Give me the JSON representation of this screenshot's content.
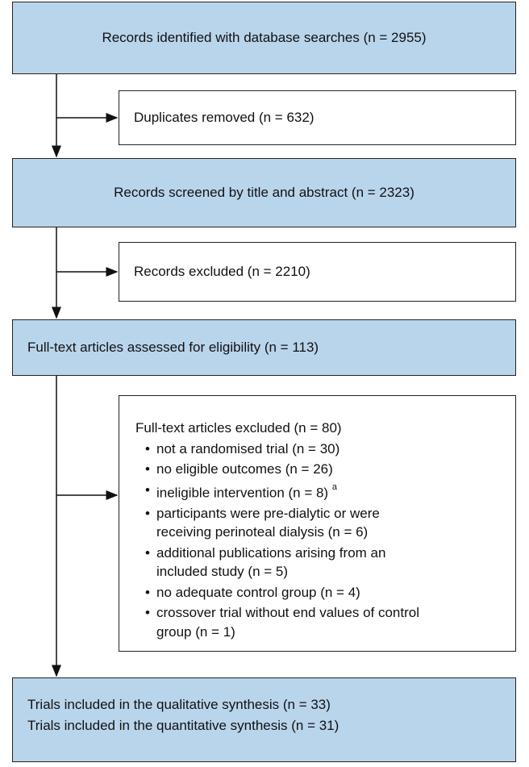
{
  "boxes": [
    {
      "text": "Records identified with database searches (n = 2955)"
    },
    {
      "text": "Duplicates removed (n = 632)"
    },
    {
      "text": "Records screened by title and abstract (n = 2323)"
    },
    {
      "text": "Records excluded (n = 2210)"
    },
    {
      "text": "Full-text articles assessed for eligibility (n = 113)"
    },
    {
      "title": "Full-text articles excluded (n = 80)",
      "items": [
        {
          "lines": [
            "not a randomised trial (n = 30)"
          ]
        },
        {
          "lines": [
            "no eligible outcomes (n = 26)"
          ]
        },
        {
          "lines": [
            "ineligible intervention (n = 8)"
          ],
          "note": "a"
        },
        {
          "lines": [
            "participants were pre-dialytic or were",
            "receiving perinoteal dialysis (n = 6)"
          ]
        },
        {
          "lines": [
            "additional publications arising from an",
            "included study (n = 5)"
          ]
        },
        {
          "lines": [
            "no adequate control group (n = 4)"
          ]
        },
        {
          "lines": [
            "crossover trial without end values of control",
            "group (n = 1)"
          ]
        }
      ]
    },
    {
      "lines": [
        "Trials included in the qualitative synthesis (n = 33)",
        "Trials included in the quantitative synthesis (n = 31)"
      ]
    }
  ]
}
